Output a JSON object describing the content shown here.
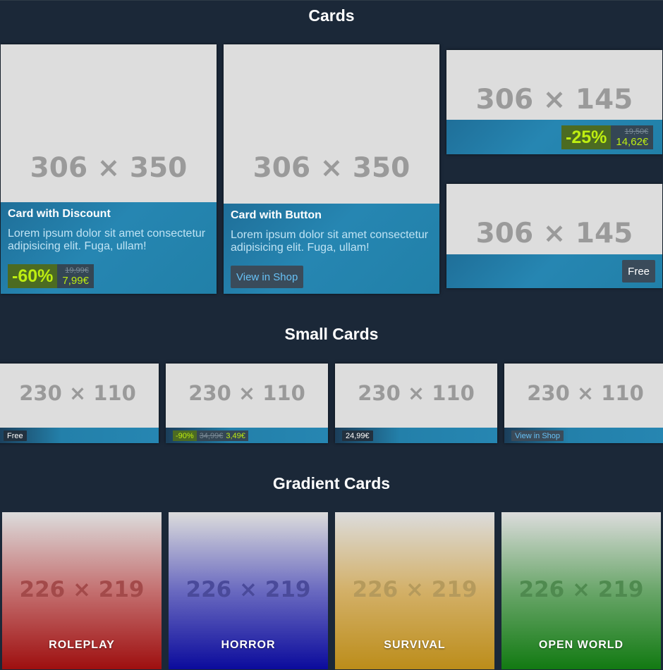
{
  "sections": {
    "cards": "Cards",
    "small_cards": "Small Cards",
    "gradient_cards": "Gradient Cards"
  },
  "cards": {
    "discount": {
      "placeholder": "306 × 350",
      "title": "Card with Discount",
      "desc": "Lorem ipsum dolor sit amet consectetur adipisicing elit. Fuga, ullam!",
      "pct": "-60%",
      "old_price": "19,99€",
      "new_price": "7,99€"
    },
    "button": {
      "placeholder": "306 × 350",
      "title": "Card with Button",
      "desc": "Lorem ipsum dolor sit amet consectetur adipisicing elit. Fuga, ullam!",
      "button": "View in Shop"
    },
    "small_discount": {
      "placeholder": "306 × 145",
      "pct": "-25%",
      "old_price": "19,50€",
      "new_price": "14,62€"
    },
    "small_free": {
      "placeholder": "306 × 145",
      "button": "Free"
    }
  },
  "small_cards": [
    {
      "placeholder": "230 × 110",
      "tag": "Free"
    },
    {
      "placeholder": "230 × 110",
      "pct": "-90%",
      "old_price": "34,99€",
      "new_price": "3,49€"
    },
    {
      "placeholder": "230 × 110",
      "tag": "24,99€"
    },
    {
      "placeholder": "230 × 110",
      "tag": "View in Shop"
    }
  ],
  "gradient_cards": [
    {
      "placeholder": "226 × 219",
      "label": "ROLEPLAY",
      "color": "#9e0f0f"
    },
    {
      "placeholder": "226 × 219",
      "label": "HORROR",
      "color": "#0b0b9c"
    },
    {
      "placeholder": "226 × 219",
      "label": "SURVIVAL",
      "color": "#bc8d1a"
    },
    {
      "placeholder": "226 × 219",
      "label": "OPEN WORLD",
      "color": "#127a12"
    }
  ]
}
